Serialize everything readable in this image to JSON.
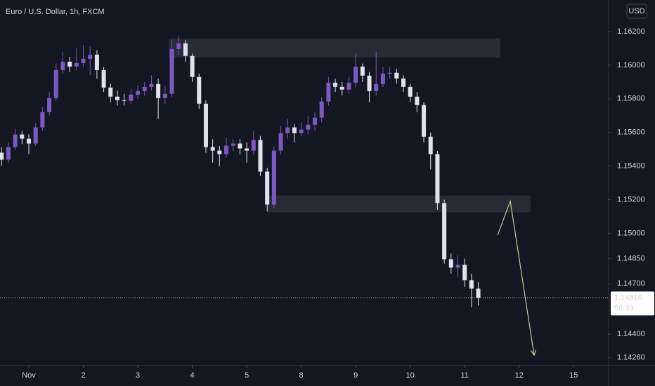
{
  "chart_data": {
    "type": "candlestick",
    "title": "Euro / U.S. Dollar, 1h, FXCM",
    "currency": "USD",
    "x": [
      -12,
      -9,
      -6,
      -3,
      0,
      3,
      6,
      9,
      12,
      15,
      18,
      21,
      24,
      27,
      30,
      33,
      36,
      39,
      42,
      45,
      48,
      51,
      54,
      57,
      60,
      63,
      66,
      69,
      72,
      75,
      78,
      81,
      84,
      87,
      90,
      93,
      96,
      99,
      102,
      105,
      108,
      111,
      114,
      117,
      120,
      123,
      126,
      129,
      132,
      135,
      138,
      141,
      144,
      147,
      150,
      153,
      156,
      159,
      162,
      165,
      168,
      171,
      174,
      177,
      180,
      183,
      186,
      189,
      192,
      195,
      198
    ],
    "candles": [
      [
        1.1548,
        1.15512,
        1.15401,
        1.15438
      ],
      [
        1.15438,
        1.1554,
        1.1542,
        1.15513
      ],
      [
        1.15513,
        1.1562,
        1.15495,
        1.15588
      ],
      [
        1.15588,
        1.1561,
        1.1553,
        1.15563
      ],
      [
        1.15563,
        1.1559,
        1.1547,
        1.15534
      ],
      [
        1.15534,
        1.15655,
        1.1552,
        1.1563
      ],
      [
        1.1563,
        1.1575,
        1.1561,
        1.15721
      ],
      [
        1.15721,
        1.1584,
        1.157,
        1.15805
      ],
      [
        1.15805,
        1.1601,
        1.1579,
        1.15971
      ],
      [
        1.15971,
        1.1608,
        1.1595,
        1.16021
      ],
      [
        1.16021,
        1.1605,
        1.1596,
        1.15992
      ],
      [
        1.15992,
        1.161,
        1.1597,
        1.16013
      ],
      [
        1.16013,
        1.1612,
        1.1599,
        1.16038
      ],
      [
        1.16038,
        1.1611,
        1.1594,
        1.16063
      ],
      [
        1.16063,
        1.1609,
        1.1592,
        1.15971
      ],
      [
        1.15971,
        1.1599,
        1.1584,
        1.15867
      ],
      [
        1.15867,
        1.1589,
        1.1578,
        1.15813
      ],
      [
        1.15813,
        1.1585,
        1.1576,
        1.15792
      ],
      [
        1.15792,
        1.1583,
        1.1576,
        1.15788
      ],
      [
        1.15788,
        1.1586,
        1.1577,
        1.15825
      ],
      [
        1.15825,
        1.1588,
        1.158,
        1.15846
      ],
      [
        1.15846,
        1.159,
        1.1582,
        1.15871
      ],
      [
        1.15871,
        1.1594,
        1.1585,
        1.15888
      ],
      [
        1.15888,
        1.1592,
        1.1568,
        1.15805
      ],
      [
        1.15805,
        1.1588,
        1.1577,
        1.1583
      ],
      [
        1.1583,
        1.1615,
        1.1581,
        1.16096
      ],
      [
        1.16096,
        1.1617,
        1.1606,
        1.1613
      ],
      [
        1.1613,
        1.1615,
        1.1602,
        1.16055
      ],
      [
        1.16055,
        1.1607,
        1.159,
        1.1593
      ],
      [
        1.1593,
        1.1595,
        1.1574,
        1.15771
      ],
      [
        1.15771,
        1.1579,
        1.1548,
        1.15513
      ],
      [
        1.15513,
        1.1556,
        1.1542,
        1.15492
      ],
      [
        1.15492,
        1.1552,
        1.154,
        1.15471
      ],
      [
        1.15471,
        1.1557,
        1.1545,
        1.15521
      ],
      [
        1.15521,
        1.1556,
        1.1549,
        1.15534
      ],
      [
        1.15534,
        1.1556,
        1.1547,
        1.15505
      ],
      [
        1.15505,
        1.1554,
        1.1542,
        1.15492
      ],
      [
        1.15492,
        1.1561,
        1.1547,
        1.15555
      ],
      [
        1.15555,
        1.1558,
        1.1534,
        1.15367
      ],
      [
        1.15367,
        1.1539,
        1.1513,
        1.15171
      ],
      [
        1.15171,
        1.1552,
        1.1515,
        1.15492
      ],
      [
        1.15492,
        1.1564,
        1.1547,
        1.15596
      ],
      [
        1.15596,
        1.1568,
        1.1556,
        1.1563
      ],
      [
        1.1563,
        1.1565,
        1.1554,
        1.15596
      ],
      [
        1.15596,
        1.1566,
        1.1558,
        1.15617
      ],
      [
        1.15617,
        1.157,
        1.1559,
        1.15646
      ],
      [
        1.15646,
        1.1572,
        1.1561,
        1.15688
      ],
      [
        1.15688,
        1.1581,
        1.1566,
        1.15784
      ],
      [
        1.15784,
        1.1593,
        1.1576,
        1.15896
      ],
      [
        1.15896,
        1.1592,
        1.1584,
        1.15871
      ],
      [
        1.15871,
        1.159,
        1.1582,
        1.15855
      ],
      [
        1.15855,
        1.1593,
        1.1583,
        1.15896
      ],
      [
        1.15896,
        1.1607,
        1.1587,
        1.15992
      ],
      [
        1.15992,
        1.1601,
        1.159,
        1.15938
      ],
      [
        1.15938,
        1.1596,
        1.1578,
        1.15846
      ],
      [
        1.15846,
        1.1608,
        1.1582,
        1.15888
      ],
      [
        1.15888,
        1.1599,
        1.1587,
        1.1595
      ],
      [
        1.1595,
        1.1599,
        1.1592,
        1.15955
      ],
      [
        1.15955,
        1.1598,
        1.1589,
        1.15921
      ],
      [
        1.15921,
        1.1594,
        1.1584,
        1.15871
      ],
      [
        1.15871,
        1.1589,
        1.1578,
        1.15813
      ],
      [
        1.15813,
        1.1584,
        1.1572,
        1.15763
      ],
      [
        1.15763,
        1.1578,
        1.1554,
        1.15575
      ],
      [
        1.15575,
        1.156,
        1.1538,
        1.15471
      ],
      [
        1.15471,
        1.1549,
        1.1514,
        1.1518
      ],
      [
        1.1518,
        1.152,
        1.1482,
        1.14846
      ],
      [
        1.14846,
        1.1488,
        1.1476,
        1.14796
      ],
      [
        1.14796,
        1.1487,
        1.1474,
        1.14813
      ],
      [
        1.14813,
        1.1485,
        1.1468,
        1.14721
      ],
      [
        1.14721,
        1.1476,
        1.1456,
        1.14671
      ],
      [
        1.14671,
        1.1471,
        1.1457,
        1.14616
      ]
    ],
    "up_color": "#7e57c2",
    "down_color": "#e0e3eb",
    "xlim": [
      -12.7,
      255.1
    ],
    "ylim": [
      1.14217,
      1.16388
    ],
    "xticks": [
      {
        "value": 0,
        "label": "Nov"
      },
      {
        "value": 24,
        "label": "2"
      },
      {
        "value": 48,
        "label": "3"
      },
      {
        "value": 72,
        "label": "4"
      },
      {
        "value": 96,
        "label": "5"
      },
      {
        "value": 120,
        "label": "8"
      },
      {
        "value": 144,
        "label": "9"
      },
      {
        "value": 168,
        "label": "10"
      },
      {
        "value": 192,
        "label": "11"
      },
      {
        "value": 216,
        "label": "12"
      },
      {
        "value": 240,
        "label": "15"
      }
    ],
    "yticks": [
      {
        "value": 1.162,
        "label": "1.16200"
      },
      {
        "value": 1.16,
        "label": "1.16000"
      },
      {
        "value": 1.158,
        "label": "1.15800"
      },
      {
        "value": 1.156,
        "label": "1.15600"
      },
      {
        "value": 1.154,
        "label": "1.15400"
      },
      {
        "value": 1.152,
        "label": "1.15200"
      },
      {
        "value": 1.15,
        "label": "1.15000"
      },
      {
        "value": 1.1485,
        "label": "1.14850"
      },
      {
        "value": 1.147,
        "label": "1.14700"
      },
      {
        "value": 1.144,
        "label": "1.14400"
      },
      {
        "value": 1.1426,
        "label": "1.14260"
      }
    ],
    "zones": [
      {
        "x": [
          61.6,
          207.7
        ],
        "y": [
          1.16046,
          1.16159
        ]
      },
      {
        "x": [
          105,
          221
        ],
        "y": [
          1.15125,
          1.15225
        ]
      }
    ],
    "zone_color": "#2a2e39",
    "projection": {
      "x": [
        206.5,
        212.1,
        222.6
      ],
      "y": [
        1.14988,
        1.15192,
        1.14275
      ],
      "color": "#c5cc8a"
    },
    "last_price": 1.14616,
    "countdown": "56:33"
  }
}
